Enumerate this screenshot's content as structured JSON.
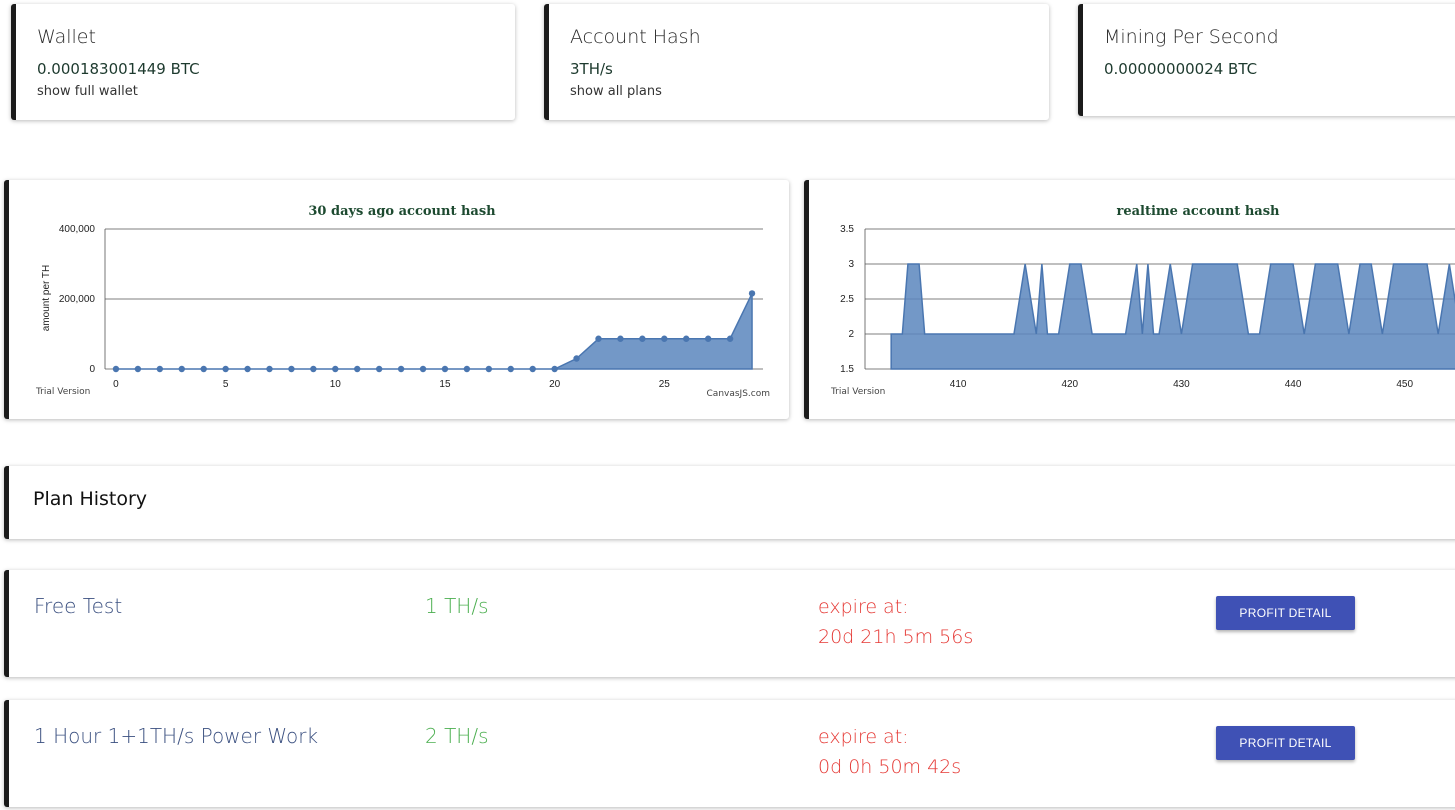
{
  "stats": [
    {
      "title": "Wallet",
      "value": "0.000183001449 BTC",
      "link": "show full wallet"
    },
    {
      "title": "Account Hash",
      "value": "3TH/s",
      "link": "show all plans"
    },
    {
      "title": "Mining Per Second",
      "value": "0.00000000024 BTC",
      "link": ""
    }
  ],
  "charts": {
    "history": {
      "title": "30 days ago account hash",
      "ylabel": "amount per TH",
      "y_ticks": [
        "0",
        "200,000",
        "400,000"
      ],
      "x_ticks": [
        "0",
        "5",
        "10",
        "15",
        "20",
        "25"
      ],
      "trial": "Trial Version",
      "credit": "CanvasJS.com"
    },
    "realtime": {
      "title": "realtime account hash",
      "y_ticks": [
        "1.5",
        "2",
        "2.5",
        "3",
        "3.5"
      ],
      "x_ticks": [
        "410",
        "420",
        "430",
        "440",
        "450"
      ],
      "trial": "Trial Version"
    }
  },
  "chart_data": [
    {
      "type": "area",
      "title": "30 days ago account hash",
      "xlabel": "",
      "ylabel": "amount per TH",
      "xlim": [
        -0.5,
        29.5
      ],
      "ylim": [
        0,
        400000
      ],
      "grid": true,
      "x": [
        0,
        1,
        2,
        3,
        4,
        5,
        6,
        7,
        8,
        9,
        10,
        11,
        12,
        13,
        14,
        15,
        16,
        17,
        18,
        19,
        20,
        21,
        22,
        23,
        24,
        25,
        26,
        27,
        28,
        29
      ],
      "y": [
        0,
        0,
        0,
        0,
        0,
        0,
        0,
        0,
        0,
        0,
        0,
        0,
        0,
        0,
        0,
        0,
        0,
        0,
        0,
        0,
        0,
        30000,
        86400,
        86400,
        86400,
        86400,
        86400,
        86400,
        86400,
        216000
      ],
      "color": "#5b86bd"
    },
    {
      "type": "area",
      "title": "realtime account hash",
      "xlim": [
        404,
        455
      ],
      "ylim": [
        1.5,
        3.5
      ],
      "grid": true,
      "x": [
        404,
        405,
        405.5,
        406,
        406.5,
        407,
        408,
        409,
        410,
        411,
        412,
        413,
        414,
        415,
        416,
        417,
        417.5,
        418,
        419,
        420,
        421,
        422,
        423,
        424,
        425,
        426,
        426.5,
        427,
        427.5,
        428,
        429,
        430,
        431,
        432,
        433,
        434,
        435,
        436,
        437,
        438,
        439,
        440,
        441,
        442,
        443,
        444,
        445,
        446,
        447,
        448,
        449,
        450,
        451,
        452,
        453,
        454,
        455
      ],
      "y": [
        2,
        2,
        3,
        3,
        3,
        2,
        2,
        2,
        2,
        2,
        2,
        2,
        2,
        2,
        3,
        2,
        3,
        2,
        2,
        3,
        3,
        2,
        2,
        2,
        2,
        3,
        2,
        3,
        2,
        2,
        3,
        2,
        3,
        3,
        3,
        3,
        3,
        2,
        2,
        3,
        3,
        3,
        2,
        3,
        3,
        3,
        2,
        3,
        3,
        2,
        3,
        3,
        3,
        3,
        2,
        3,
        2
      ],
      "color": "#5b86bd"
    }
  ],
  "plan_history": {
    "title": "Plan History"
  },
  "plans": [
    {
      "name": "Free Test",
      "rate": "1 TH/s",
      "expire_label": "expire at:",
      "expire_value": "20d 21h 5m 56s",
      "button": "PROFIT DETAIL"
    },
    {
      "name": "1 Hour 1+1TH/s Power Work",
      "rate": "2 TH/s",
      "expire_label": "expire at:",
      "expire_value": "0d 0h 50m 42s",
      "button": "PROFIT DETAIL"
    }
  ],
  "colors": {
    "accent": "#3f51b5",
    "rate": "#4caf50",
    "expire": "#e53935",
    "chart_fill": "#5b86bd",
    "chart_title": "#1d4a30"
  }
}
